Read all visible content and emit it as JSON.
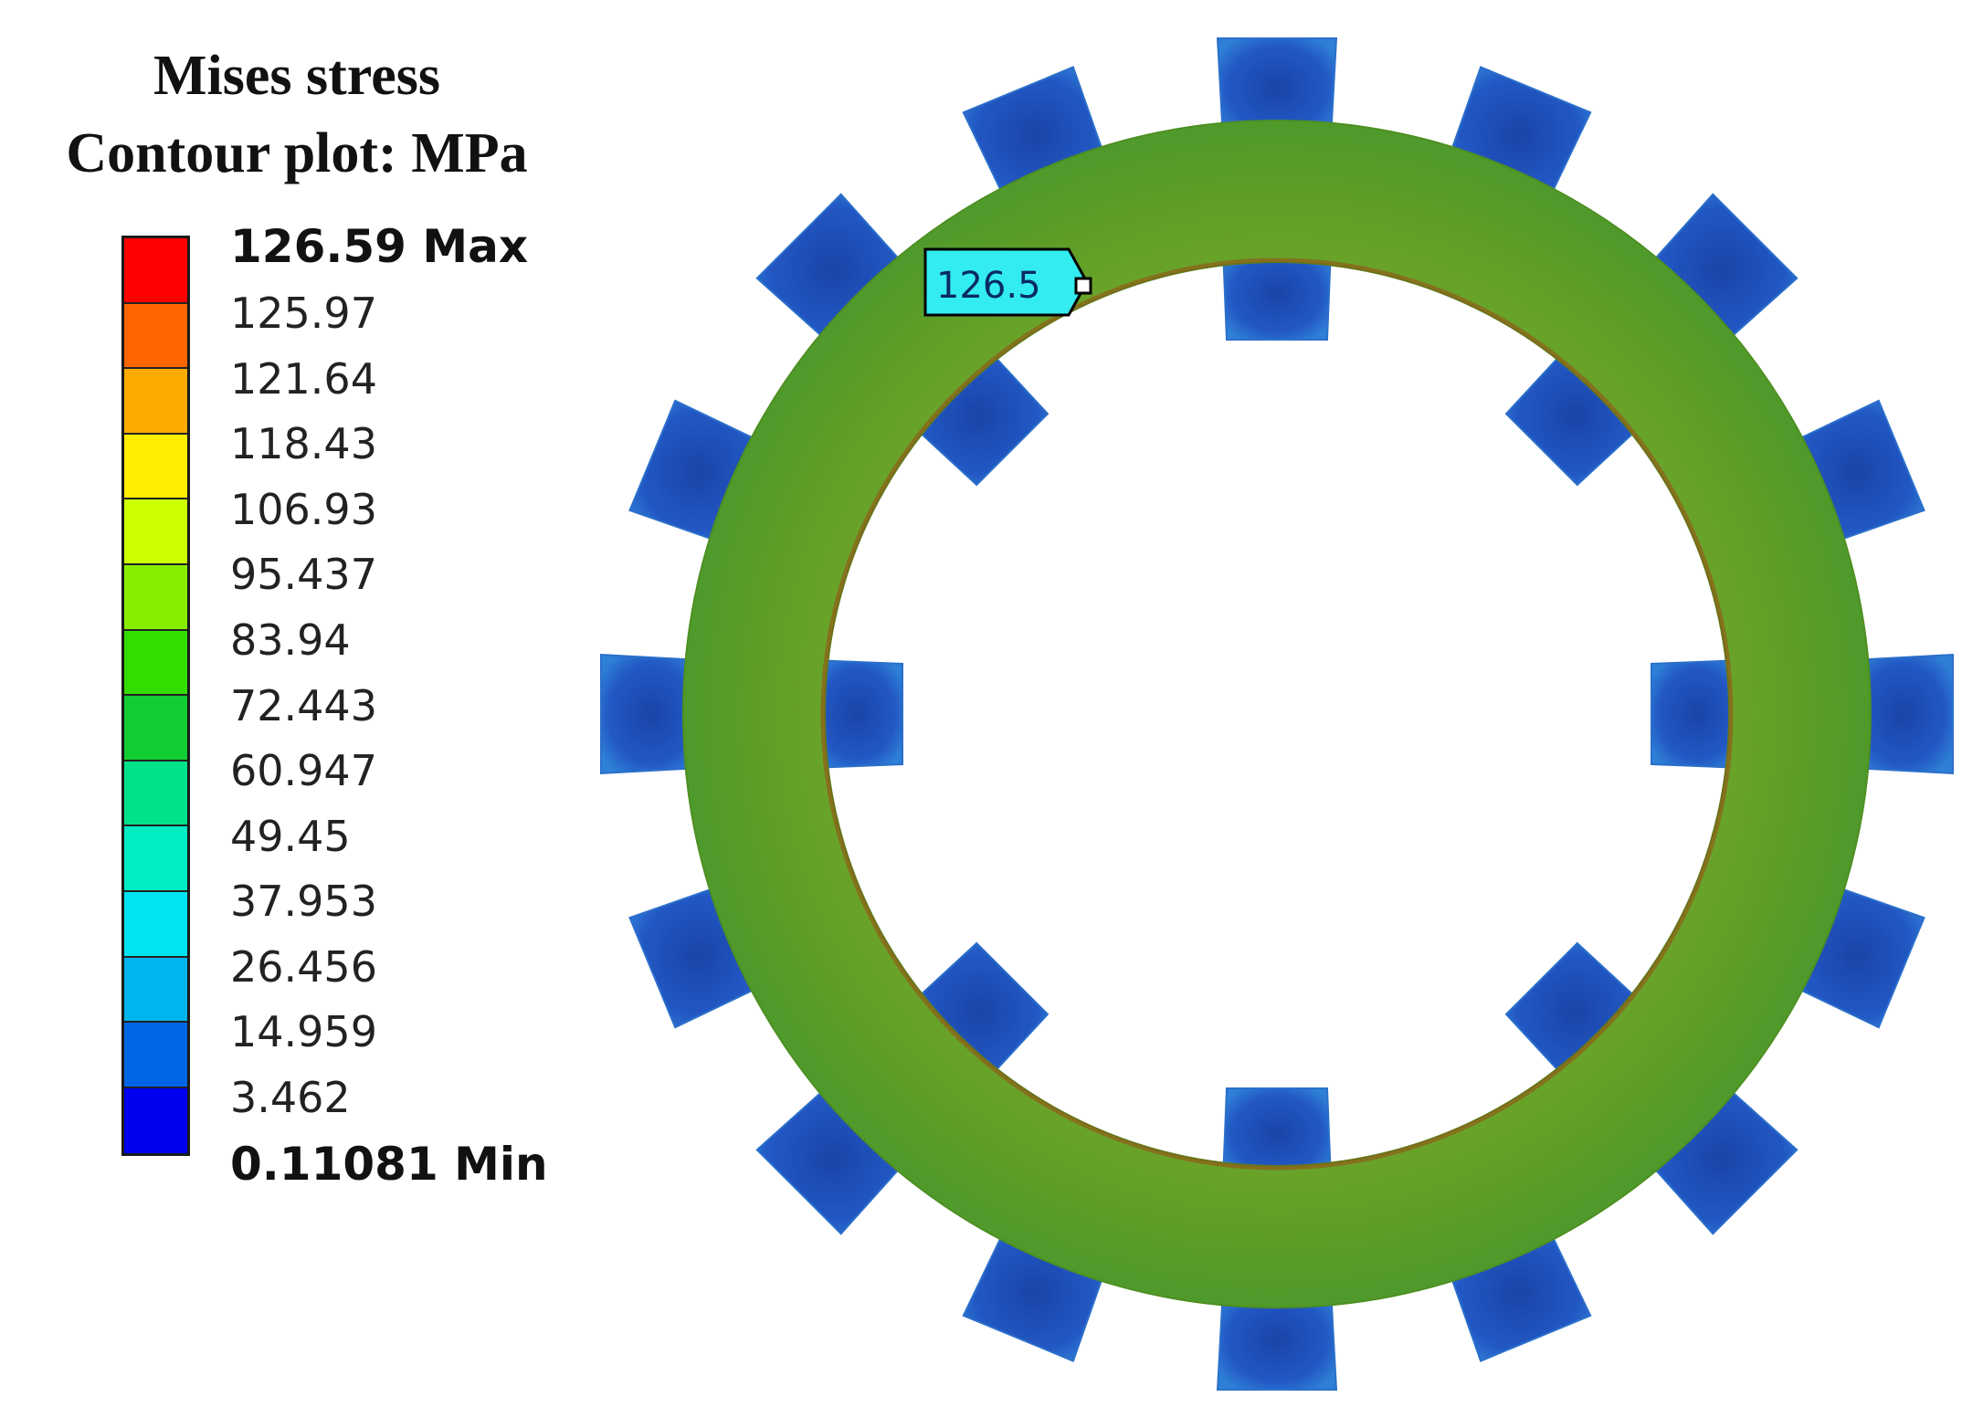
{
  "title": {
    "line1": "Mises stress",
    "line2": "Contour plot: MPa"
  },
  "legend": {
    "max_label": "126.59 Max",
    "min_label": "0.11081 Min",
    "levels": [
      "125.97",
      "121.64",
      "118.43",
      "106.93",
      "95.437",
      "83.94",
      "72.443",
      "60.947",
      "49.45",
      "37.953",
      "26.456",
      "14.959",
      "3.462"
    ],
    "colors": [
      "#ff0000",
      "#ff6600",
      "#ffaa00",
      "#ffee00",
      "#ccff00",
      "#88ee00",
      "#33dd00",
      "#11cc33",
      "#00e28a",
      "#00ecc4",
      "#00e4f2",
      "#00b4ee",
      "#0066e6",
      "#0000ee"
    ]
  },
  "probe": {
    "value_label": "126.5",
    "color": "#33ecf0"
  },
  "model": {
    "ring_color": "#5f9a1e",
    "tooth_color": "#1f4fb8",
    "outer_tooth_count": 16,
    "inner_tooth_count": 8
  }
}
